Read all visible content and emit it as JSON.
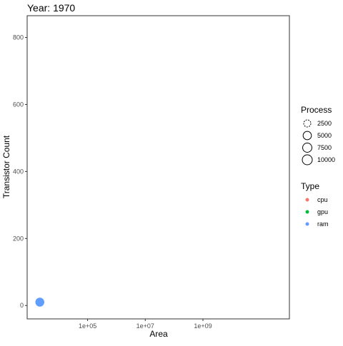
{
  "chart_data": {
    "type": "scatter",
    "title": "Year: 1970",
    "xlabel": "Area",
    "ylabel": "Transistor Count",
    "x_scale": "log10",
    "x_ticks": [
      {
        "value": 100000,
        "label": "1e+05"
      },
      {
        "value": 10000000,
        "label": "1e+07"
      },
      {
        "value": 1000000000,
        "label": "1e+09"
      }
    ],
    "y_ticks": [
      {
        "value": 0,
        "label": "0"
      },
      {
        "value": 200,
        "label": "200"
      },
      {
        "value": 400,
        "label": "400"
      },
      {
        "value": 600,
        "label": "600"
      },
      {
        "value": 800,
        "label": "800"
      }
    ],
    "xlim": [
      800,
      1000000000000
    ],
    "ylim": [
      -40,
      865
    ],
    "grid": false,
    "legend_position": "right",
    "size_legend": {
      "title": "Process",
      "entries": [
        {
          "value": 2500,
          "label": "2500"
        },
        {
          "value": 5000,
          "label": "5000"
        },
        {
          "value": 7500,
          "label": "7500"
        },
        {
          "value": 10000,
          "label": "10000"
        }
      ]
    },
    "color_legend": {
      "title": "Type",
      "entries": [
        {
          "name": "cpu",
          "label": "cpu",
          "color": "#F8766D"
        },
        {
          "name": "gpu",
          "label": "gpu",
          "color": "#00BA38"
        },
        {
          "name": "ram",
          "label": "ram",
          "color": "#619CFF"
        }
      ]
    },
    "points": [
      {
        "x": 2200,
        "y": 10,
        "process": 8000,
        "type": "ram"
      }
    ]
  }
}
